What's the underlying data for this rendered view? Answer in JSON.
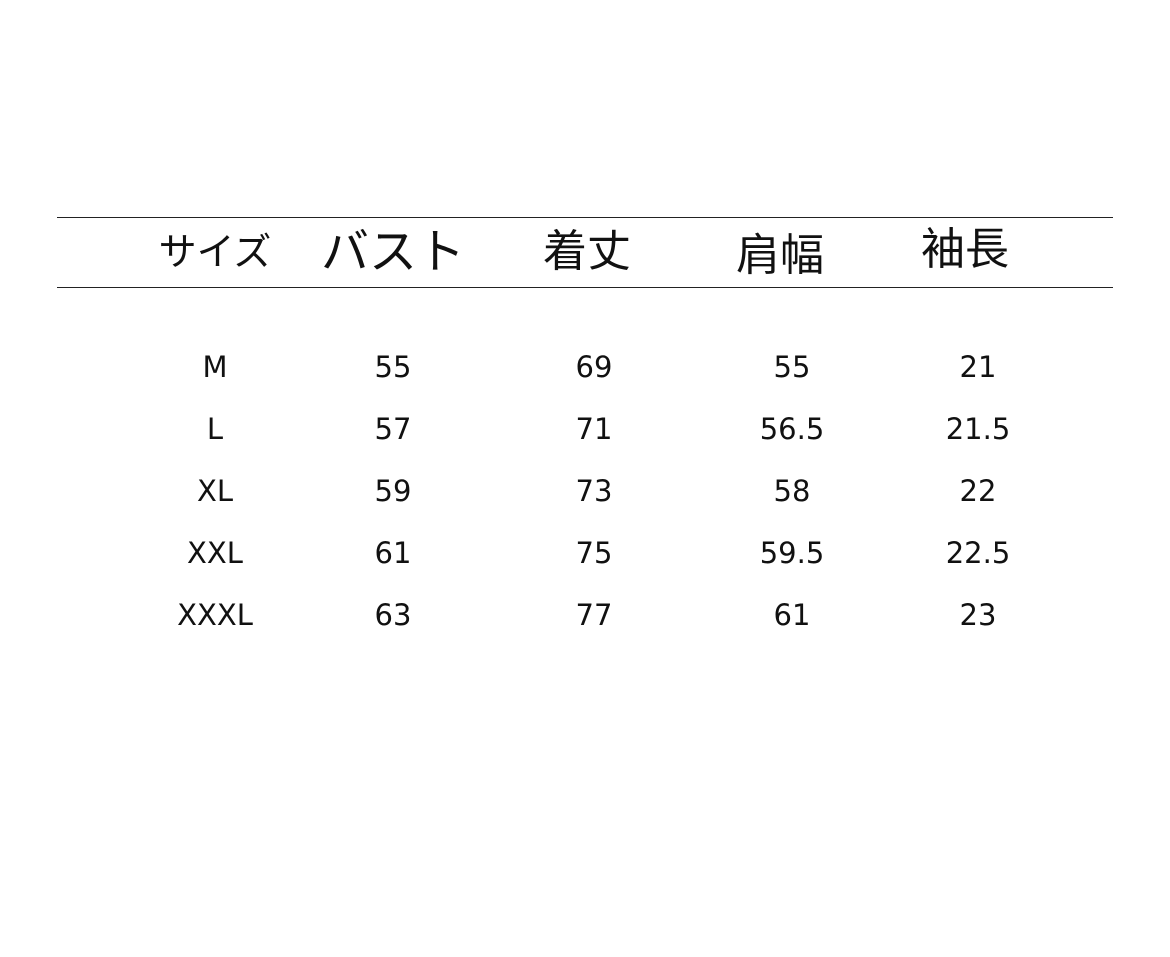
{
  "table": {
    "headers": [
      "サイズ",
      "バスト",
      "着丈",
      "肩幅",
      "袖長"
    ],
    "rows": [
      [
        "M",
        "55",
        "69",
        "55",
        "21"
      ],
      [
        "L",
        "57",
        "71",
        "56.5",
        "21.5"
      ],
      [
        "XL",
        "59",
        "73",
        "58",
        "22"
      ],
      [
        "XXL",
        "61",
        "75",
        "59.5",
        "22.5"
      ],
      [
        "XXXL",
        "63",
        "77",
        "61",
        "23"
      ]
    ]
  }
}
